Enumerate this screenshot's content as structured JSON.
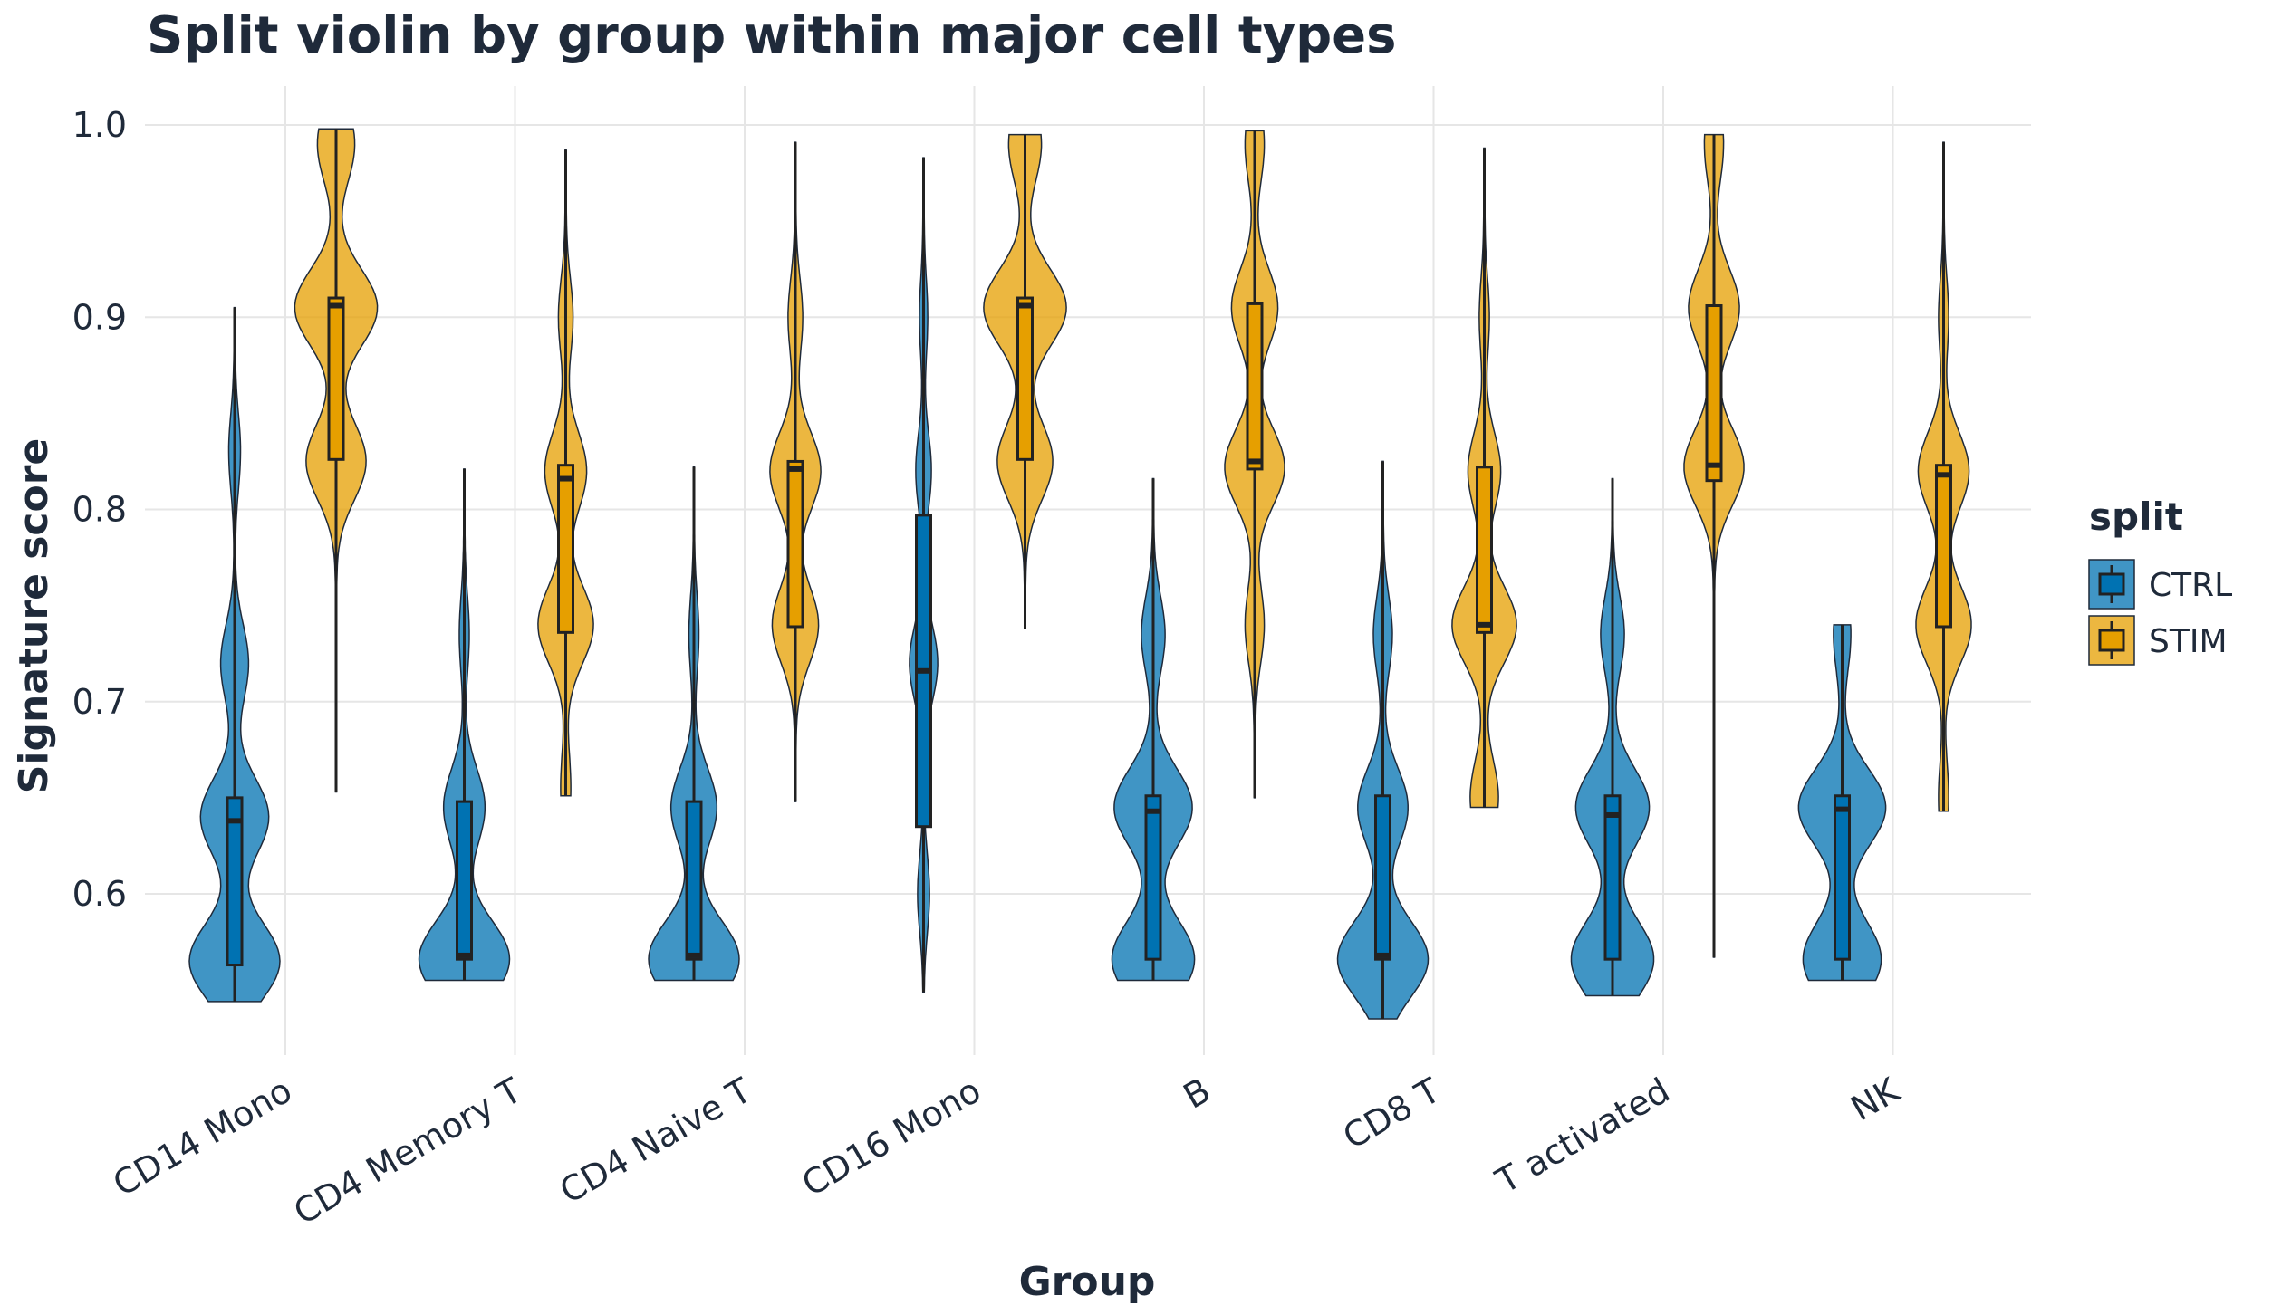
{
  "chart_data": {
    "type": "violin",
    "title": "Split violin by group within major cell types",
    "xlabel": "Group",
    "ylabel": "Signature score",
    "ylim": [
      0.51,
      1.02
    ],
    "yticks": [
      0.6,
      0.7,
      0.8,
      0.9,
      1.0
    ],
    "ytick_labels": [
      "0.6",
      "0.7",
      "0.8",
      "0.9",
      "1.0"
    ],
    "grid": true,
    "legend": {
      "title": "split",
      "position": "right"
    },
    "categories": [
      "CD14 Mono",
      "CD4 Memory T",
      "CD4 Naive T",
      "CD16 Mono",
      "B",
      "CD8 T",
      "T activated",
      "NK"
    ],
    "series": [
      {
        "name": "CTRL",
        "color": "#0072B2",
        "stats": [
          {
            "min": 0.544,
            "q1": 0.563,
            "median": 0.638,
            "q3": 0.65,
            "max": 0.905,
            "modes": [
              [
                0.565,
                1.0
              ],
              [
                0.64,
                0.75
              ],
              [
                0.72,
                0.3
              ],
              [
                0.83,
                0.12
              ]
            ]
          },
          {
            "min": 0.555,
            "q1": 0.566,
            "median": 0.568,
            "q3": 0.648,
            "max": 0.821,
            "modes": [
              [
                0.566,
                1.0
              ],
              [
                0.645,
                0.45
              ],
              [
                0.735,
                0.1
              ]
            ]
          },
          {
            "min": 0.555,
            "q1": 0.566,
            "median": 0.568,
            "q3": 0.648,
            "max": 0.822,
            "modes": [
              [
                0.566,
                1.0
              ],
              [
                0.645,
                0.5
              ],
              [
                0.735,
                0.1
              ]
            ]
          },
          {
            "min": 0.549,
            "q1": 0.635,
            "median": 0.716,
            "q3": 0.797,
            "max": 0.983,
            "modes": [
              [
                0.6,
                0.12
              ],
              [
                0.72,
                0.3
              ],
              [
                0.82,
                0.16
              ],
              [
                0.9,
                0.08
              ]
            ]
          },
          {
            "min": 0.555,
            "q1": 0.566,
            "median": 0.643,
            "q3": 0.651,
            "max": 0.816,
            "modes": [
              [
                0.566,
                0.9
              ],
              [
                0.645,
                0.85
              ],
              [
                0.735,
                0.25
              ]
            ]
          },
          {
            "min": 0.535,
            "q1": 0.566,
            "median": 0.568,
            "q3": 0.651,
            "max": 0.825,
            "modes": [
              [
                0.566,
                1.0
              ],
              [
                0.645,
                0.55
              ],
              [
                0.735,
                0.2
              ]
            ]
          },
          {
            "min": 0.547,
            "q1": 0.566,
            "median": 0.641,
            "q3": 0.651,
            "max": 0.816,
            "modes": [
              [
                0.566,
                0.9
              ],
              [
                0.645,
                0.8
              ],
              [
                0.735,
                0.25
              ]
            ]
          },
          {
            "min": 0.555,
            "q1": 0.566,
            "median": 0.644,
            "q3": 0.651,
            "max": 0.74,
            "modes": [
              [
                0.566,
                0.85
              ],
              [
                0.645,
                0.95
              ],
              [
                0.735,
                0.18
              ]
            ]
          }
        ]
      },
      {
        "name": "STIM",
        "color": "#E69F00",
        "stats": [
          {
            "min": 0.653,
            "q1": 0.826,
            "median": 0.906,
            "q3": 0.91,
            "max": 0.998,
            "modes": [
              [
                0.825,
                0.65
              ],
              [
                0.905,
                0.9
              ],
              [
                0.99,
                0.4
              ]
            ]
          },
          {
            "min": 0.651,
            "q1": 0.736,
            "median": 0.816,
            "q3": 0.823,
            "max": 0.987,
            "modes": [
              [
                0.655,
                0.1
              ],
              [
                0.74,
                0.6
              ],
              [
                0.82,
                0.45
              ],
              [
                0.9,
                0.15
              ]
            ]
          },
          {
            "min": 0.648,
            "q1": 0.739,
            "median": 0.821,
            "q3": 0.825,
            "max": 0.991,
            "modes": [
              [
                0.74,
                0.5
              ],
              [
                0.82,
                0.55
              ],
              [
                0.9,
                0.15
              ]
            ]
          },
          {
            "min": 0.738,
            "q1": 0.826,
            "median": 0.906,
            "q3": 0.91,
            "max": 0.995,
            "modes": [
              [
                0.825,
                0.6
              ],
              [
                0.905,
                0.9
              ],
              [
                0.99,
                0.35
              ]
            ]
          },
          {
            "min": 0.65,
            "q1": 0.821,
            "median": 0.825,
            "q3": 0.907,
            "max": 0.997,
            "modes": [
              [
                0.74,
                0.2
              ],
              [
                0.822,
                0.65
              ],
              [
                0.905,
                0.5
              ],
              [
                0.99,
                0.2
              ]
            ]
          },
          {
            "min": 0.645,
            "q1": 0.736,
            "median": 0.74,
            "q3": 0.822,
            "max": 0.988,
            "modes": [
              [
                0.65,
                0.3
              ],
              [
                0.74,
                0.7
              ],
              [
                0.82,
                0.35
              ],
              [
                0.9,
                0.1
              ]
            ]
          },
          {
            "min": 0.567,
            "q1": 0.815,
            "median": 0.823,
            "q3": 0.906,
            "max": 0.995,
            "modes": [
              [
                0.822,
                0.65
              ],
              [
                0.905,
                0.55
              ],
              [
                0.99,
                0.2
              ]
            ]
          },
          {
            "min": 0.643,
            "q1": 0.739,
            "median": 0.818,
            "q3": 0.823,
            "max": 0.991,
            "modes": [
              [
                0.65,
                0.1
              ],
              [
                0.74,
                0.6
              ],
              [
                0.82,
                0.55
              ],
              [
                0.9,
                0.1
              ]
            ]
          }
        ]
      }
    ]
  }
}
